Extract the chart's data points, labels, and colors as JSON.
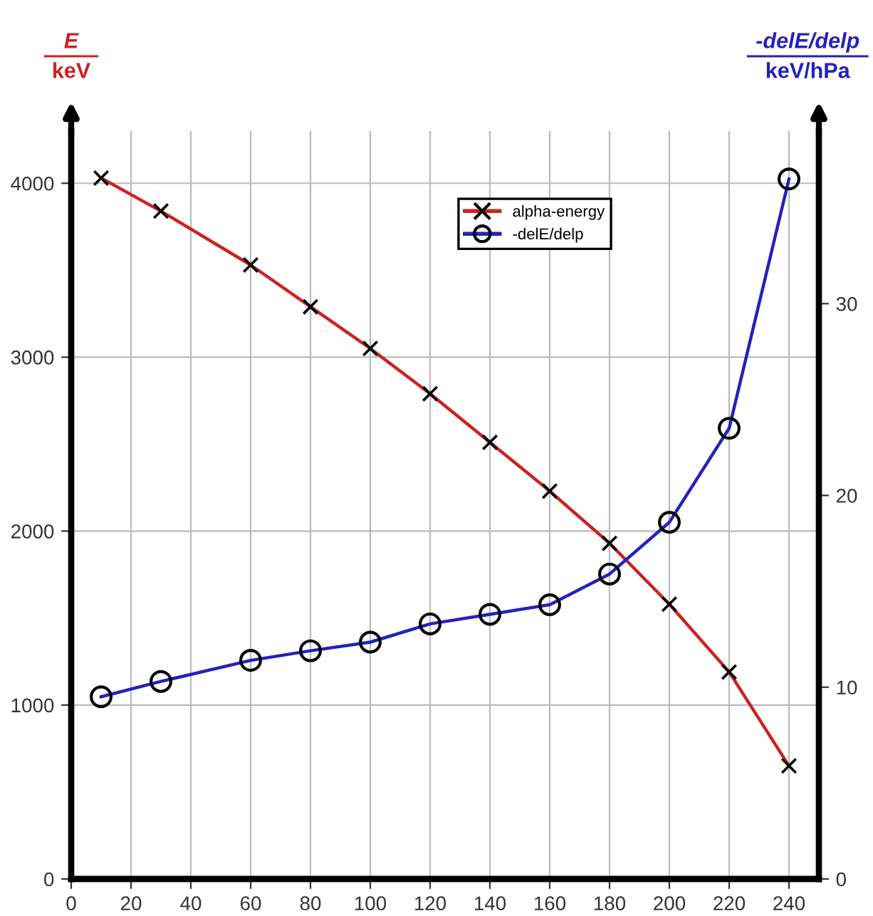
{
  "chart_data": {
    "type": "line",
    "ylabel": "E\nkeV",
    "y2label": "-delE/delp\nkeV/hPa",
    "x": [
      10,
      30,
      60,
      80,
      100,
      120,
      140,
      160,
      180,
      200,
      220,
      240
    ],
    "series": [
      {
        "name": "alpha-energy",
        "color": "#cc2222",
        "marker": "cross",
        "values": [
          4030,
          3840,
          3530,
          3290,
          3050,
          2790,
          2510,
          2230,
          1930,
          1580,
          1190,
          650
        ]
      },
      {
        "name": "-delE/delp",
        "color": "#2222bb",
        "marker": "circle",
        "axis": "y2",
        "values": [
          9.5,
          10.3,
          11.4,
          11.9,
          12.35,
          13.3,
          13.8,
          14.3,
          15.9,
          18.6,
          23.5,
          36.5
        ]
      }
    ],
    "xlim": [
      0,
      250
    ],
    "xticks": [
      0,
      20,
      40,
      60,
      80,
      100,
      120,
      140,
      160,
      180,
      200,
      220,
      240
    ],
    "ylim": [
      0,
      4300
    ],
    "yticks": [
      0,
      1000,
      2000,
      3000,
      4000
    ],
    "y2lim": [
      0,
      39
    ],
    "y2ticks": [
      0,
      10,
      20,
      30
    ],
    "grid": true,
    "legend": "top",
    "line_style": "solid"
  }
}
